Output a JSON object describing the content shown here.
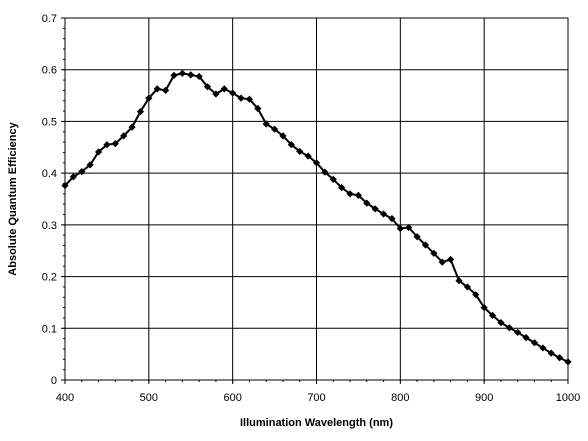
{
  "chart_data": {
    "type": "line",
    "title": "",
    "xlabel": "Illumination Wavelength (nm)",
    "ylabel": "Absolute Quantum Efficiency",
    "xlim": [
      400,
      1000
    ],
    "ylim": [
      0,
      0.7
    ],
    "xticks": [
      400,
      500,
      600,
      700,
      800,
      900,
      1000
    ],
    "yticks": [
      0,
      0.1,
      0.2,
      0.3,
      0.4,
      0.5,
      0.6,
      0.7
    ],
    "xtick_labels": [
      "400",
      "500",
      "600",
      "700",
      "800",
      "900",
      "1000"
    ],
    "ytick_labels": [
      "0",
      "0.1",
      "0.2",
      "0.3",
      "0.4",
      "0.5",
      "0.6",
      "0.7"
    ],
    "grid": true,
    "line_color": "#000000",
    "marker": "diamond",
    "series": [
      {
        "x": [
          400,
          410,
          420,
          430,
          440,
          450,
          460,
          470,
          480,
          490,
          500,
          510,
          520,
          530,
          540,
          550,
          560,
          570,
          580,
          590,
          600,
          610,
          620,
          630,
          640,
          650,
          660,
          670,
          680,
          690,
          700,
          710,
          720,
          730,
          740,
          750,
          760,
          770,
          780,
          790,
          800,
          810,
          820,
          830,
          840,
          850,
          860,
          870,
          880,
          890,
          900,
          910,
          920,
          930,
          940,
          950,
          960,
          970,
          980,
          990,
          1000
        ],
        "y": [
          0.376,
          0.393,
          0.403,
          0.416,
          0.441,
          0.455,
          0.457,
          0.472,
          0.489,
          0.519,
          0.545,
          0.563,
          0.56,
          0.589,
          0.593,
          0.59,
          0.587,
          0.567,
          0.553,
          0.563,
          0.555,
          0.545,
          0.543,
          0.525,
          0.495,
          0.485,
          0.472,
          0.455,
          0.442,
          0.433,
          0.42,
          0.402,
          0.388,
          0.372,
          0.36,
          0.357,
          0.342,
          0.331,
          0.321,
          0.312,
          0.293,
          0.295,
          0.277,
          0.261,
          0.245,
          0.228,
          0.233,
          0.192,
          0.18,
          0.165,
          0.14,
          0.125,
          0.111,
          0.101,
          0.092,
          0.082,
          0.072,
          0.062,
          0.052,
          0.043,
          0.035
        ]
      }
    ]
  }
}
